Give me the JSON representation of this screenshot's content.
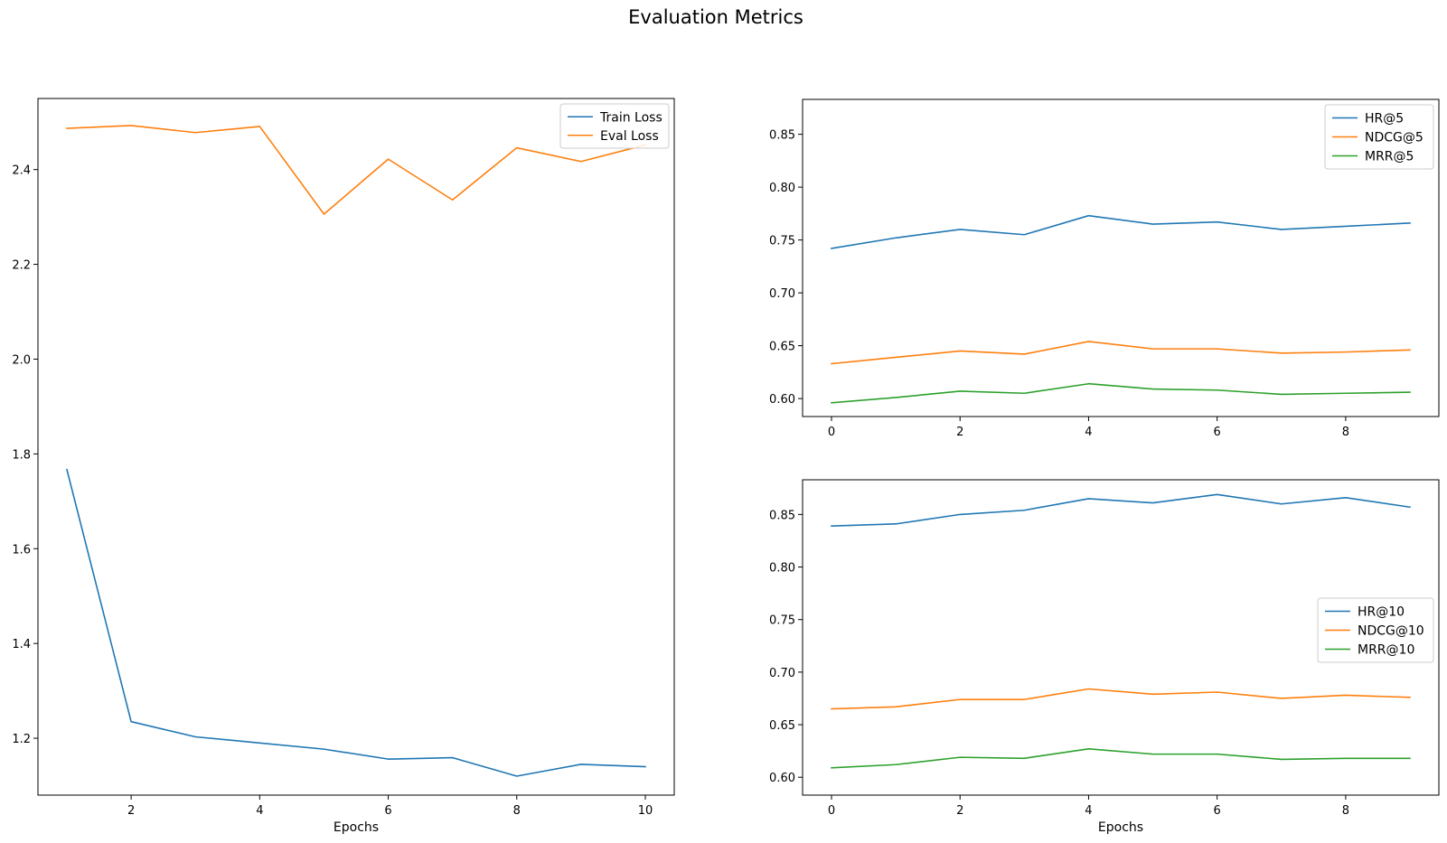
{
  "figure": {
    "title": "Evaluation Metrics"
  },
  "chart_data": [
    {
      "type": "line",
      "title": "",
      "xlabel": "Epochs",
      "ylabel": "",
      "x": [
        1,
        2,
        3,
        4,
        5,
        6,
        7,
        8,
        9,
        10
      ],
      "xlim": [
        0.55,
        10.45
      ],
      "ylim": [
        1.08,
        2.55
      ],
      "xticks": [
        2,
        4,
        6,
        8,
        10
      ],
      "yticks": [
        1.2,
        1.4,
        1.6,
        1.8,
        2.0,
        2.2,
        2.4
      ],
      "xtick_labels": [
        "2",
        "4",
        "6",
        "8",
        "10"
      ],
      "ytick_labels": [
        "1.2",
        "1.4",
        "1.6",
        "1.8",
        "2.0",
        "2.2",
        "2.4"
      ],
      "grid": false,
      "legend": "top-right",
      "series": [
        {
          "name": "Train Loss",
          "color": "#1f77b4",
          "values": [
            1.767,
            1.235,
            1.203,
            1.19,
            1.177,
            1.156,
            1.159,
            1.12,
            1.145,
            1.14
          ]
        },
        {
          "name": "Eval Loss",
          "color": "#ff7f0e",
          "values": [
            2.487,
            2.493,
            2.478,
            2.491,
            2.306,
            2.422,
            2.336,
            2.446,
            2.417,
            2.452
          ]
        }
      ]
    },
    {
      "type": "line",
      "title": "",
      "xlabel": "",
      "ylabel": "",
      "x": [
        0,
        1,
        2,
        3,
        4,
        5,
        6,
        7,
        8,
        9
      ],
      "xlim": [
        -0.45,
        9.45
      ],
      "ylim": [
        0.583,
        0.883
      ],
      "xticks": [
        0,
        2,
        4,
        6,
        8
      ],
      "yticks": [
        0.6,
        0.65,
        0.7,
        0.75,
        0.8,
        0.85
      ],
      "xtick_labels": [
        "0",
        "2",
        "4",
        "6",
        "8"
      ],
      "ytick_labels": [
        "0.60",
        "0.65",
        "0.70",
        "0.75",
        "0.80",
        "0.85"
      ],
      "grid": false,
      "legend": "top-right",
      "series": [
        {
          "name": "HR@5",
          "color": "#1f77b4",
          "values": [
            0.742,
            0.752,
            0.76,
            0.755,
            0.773,
            0.765,
            0.767,
            0.76,
            0.763,
            0.766
          ]
        },
        {
          "name": "NDCG@5",
          "color": "#ff7f0e",
          "values": [
            0.633,
            0.639,
            0.645,
            0.642,
            0.654,
            0.647,
            0.647,
            0.643,
            0.644,
            0.646
          ]
        },
        {
          "name": "MRR@5",
          "color": "#2ca02c",
          "values": [
            0.596,
            0.601,
            0.607,
            0.605,
            0.614,
            0.609,
            0.608,
            0.604,
            0.605,
            0.606
          ]
        }
      ]
    },
    {
      "type": "line",
      "title": "",
      "xlabel": "Epochs",
      "ylabel": "",
      "x": [
        0,
        1,
        2,
        3,
        4,
        5,
        6,
        7,
        8,
        9
      ],
      "xlim": [
        -0.45,
        9.45
      ],
      "ylim": [
        0.583,
        0.883
      ],
      "xticks": [
        0,
        2,
        4,
        6,
        8
      ],
      "yticks": [
        0.6,
        0.65,
        0.7,
        0.75,
        0.8,
        0.85
      ],
      "xtick_labels": [
        "0",
        "2",
        "4",
        "6",
        "8"
      ],
      "ytick_labels": [
        "0.60",
        "0.65",
        "0.70",
        "0.75",
        "0.80",
        "0.85"
      ],
      "grid": false,
      "legend": "center-right",
      "series": [
        {
          "name": "HR@10",
          "color": "#1f77b4",
          "values": [
            0.839,
            0.841,
            0.85,
            0.854,
            0.865,
            0.861,
            0.869,
            0.86,
            0.866,
            0.857
          ]
        },
        {
          "name": "NDCG@10",
          "color": "#ff7f0e",
          "values": [
            0.665,
            0.667,
            0.674,
            0.674,
            0.684,
            0.679,
            0.681,
            0.675,
            0.678,
            0.676
          ]
        },
        {
          "name": "MRR@10",
          "color": "#2ca02c",
          "values": [
            0.609,
            0.612,
            0.619,
            0.618,
            0.627,
            0.622,
            0.622,
            0.617,
            0.618,
            0.618
          ]
        }
      ]
    }
  ]
}
